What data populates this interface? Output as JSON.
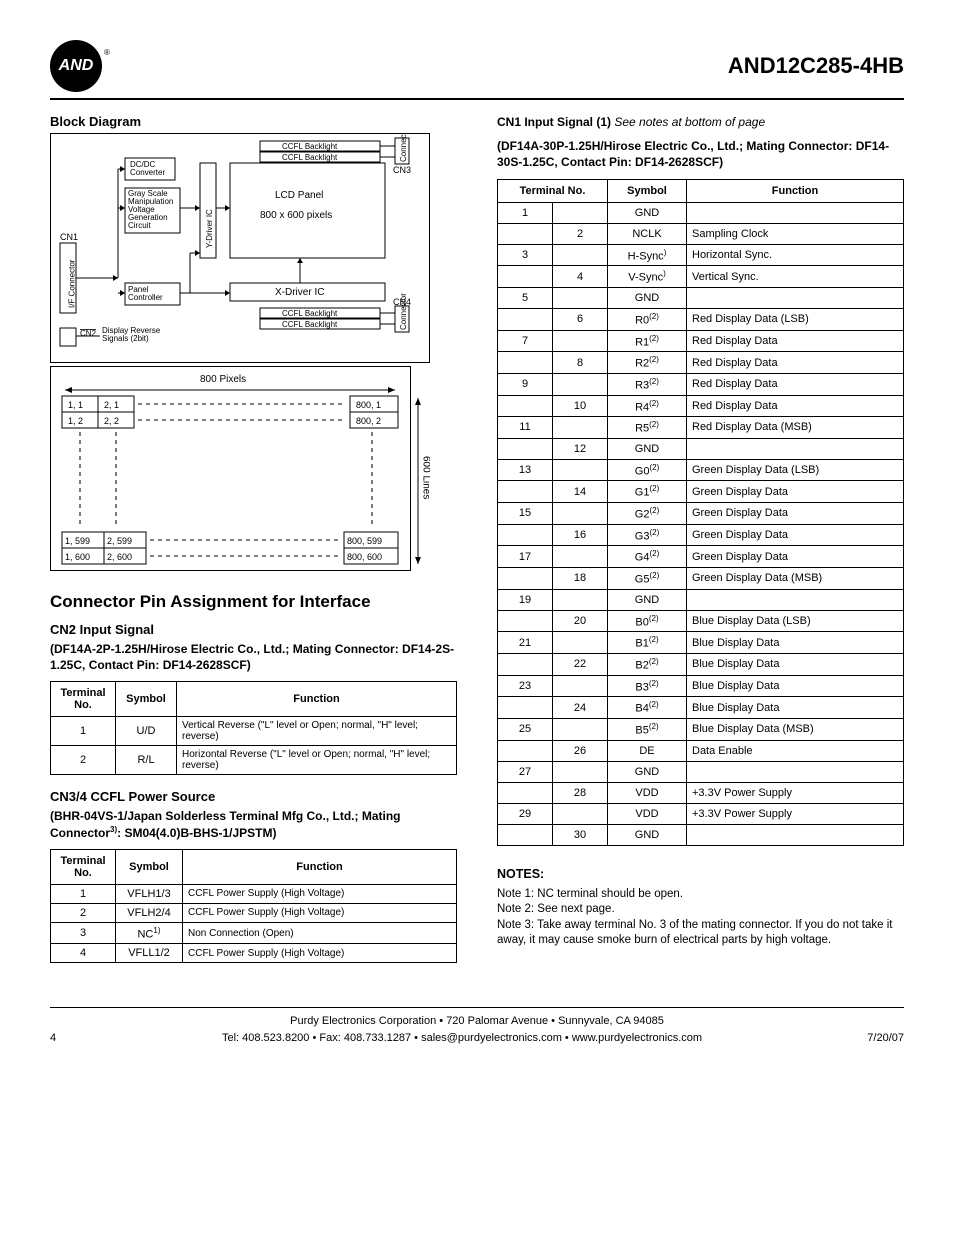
{
  "header": {
    "logo_text": "AND",
    "part_number": "AND12C285-4HB"
  },
  "left": {
    "block_diagram_title": "Block Diagram",
    "block": {
      "cn1": "CN1",
      "cn2": "CN2",
      "cn3": "CN3",
      "cn4": "CN4",
      "if_connector": "I/F Connector",
      "connector": "Connector",
      "dcdc": "DC/DC\nConverter",
      "gray": "Gray Scale\nManipulation\nVoltage\nGeneration\nCircuit",
      "panel_ctrl": "Panel\nController",
      "y_driver": "Y-Driver IC",
      "x_driver": "X-Driver IC",
      "lcd_panel": "LCD Panel",
      "lcd_pixels": "800 x 600 pixels",
      "ccfl": "CCFL Backlight",
      "disp_rev": "Display Reverse\nSignals (2bit)"
    },
    "pixel_grid": {
      "top_label": "800 Pixels",
      "right_label": "600 Lines",
      "cells": {
        "r1c1": "1, 1",
        "r1c2": "2, 1",
        "r1cN": "800, 1",
        "r2c1": "1, 2",
        "r2c2": "2, 2",
        "r2cN": "800, 2",
        "rM1c1": "1, 599",
        "rM1c2": "2, 599",
        "rM1cN": "800, 599",
        "rMc1": "1, 600",
        "rMc2": "2, 600",
        "rMcN": "800, 600"
      }
    },
    "connector_heading": "Connector Pin Assignment for Interface",
    "cn2_title": "CN2 Input Signal",
    "cn2_sub": "(DF14A-2P-1.25H/Hirose Electric Co., Ltd.; Mating Connector: DF14-2S-1.25C, Contact Pin: DF14-2628SCF)",
    "cn2_headers": [
      "Terminal No.",
      "Symbol",
      "Function"
    ],
    "cn2_rows": [
      {
        "no": "1",
        "sym": "U/D",
        "fn": "Vertical Reverse (\"L\" level or Open; normal, \"H\" level; reverse)"
      },
      {
        "no": "2",
        "sym": "R/L",
        "fn": "Horizontal Reverse (\"L\" level or Open; normal, \"H\" level; reverse)"
      }
    ],
    "cn34_title": "CN3/4 CCFL Power Source",
    "cn34_sub_a": "(BHR-04VS-1/Japan Solderless Terminal Mfg Co., Ltd.; Mating Connector",
    "cn34_sub_sup": "3)",
    "cn34_sub_b": ": SM04(4.0)B-BHS-1/JPSTM)",
    "cn34_headers": [
      "Terminal No.",
      "Symbol",
      "Function"
    ],
    "cn34_rows": [
      {
        "no": "1",
        "sym": "VFLH1/3",
        "fn": "CCFL Power Supply (High Voltage)"
      },
      {
        "no": "2",
        "sym": "VFLH2/4",
        "fn": "CCFL Power Supply (High Voltage)"
      },
      {
        "no": "3",
        "sym": "NC",
        "sup": "1)",
        "fn": "Non Connection (Open)"
      },
      {
        "no": "4",
        "sym": "VFLL1/2",
        "fn": "CCFL Power Supply (High Voltage)"
      }
    ]
  },
  "right": {
    "cn1_title_a": "CN1 Input Signal (1) ",
    "cn1_title_em": "See notes at bottom of page",
    "cn1_sub": "(DF14A-30P-1.25H/Hirose Electric Co., Ltd.; Mating Connector: DF14-30S-1.25C, Contact Pin: DF14-2628SCF)",
    "cn1_headers": [
      "Terminal No.",
      "Symbol",
      "Function"
    ],
    "cn1_rows": [
      {
        "col": 0,
        "no": "1",
        "sym": "GND",
        "fn": ""
      },
      {
        "col": 1,
        "no": "2",
        "sym": "NCLK",
        "fn": "Sampling Clock"
      },
      {
        "col": 0,
        "no": "3",
        "sym": "H-Sync",
        "sup": ")",
        "fn": "Horizontal Sync."
      },
      {
        "col": 1,
        "no": "4",
        "sym": "V-Sync",
        "sup": ")",
        "fn": "Vertical Sync."
      },
      {
        "col": 0,
        "no": "5",
        "sym": "GND",
        "fn": ""
      },
      {
        "col": 1,
        "no": "6",
        "sym": "R0",
        "sup": "(2)",
        "fn": "Red Display Data (LSB)"
      },
      {
        "col": 0,
        "no": "7",
        "sym": "R1",
        "sup": "(2)",
        "fn": "Red Display Data"
      },
      {
        "col": 1,
        "no": "8",
        "sym": "R2",
        "sup": "(2)",
        "fn": "Red Display Data"
      },
      {
        "col": 0,
        "no": "9",
        "sym": "R3",
        "sup": "(2)",
        "fn": "Red Display Data"
      },
      {
        "col": 1,
        "no": "10",
        "sym": "R4",
        "sup": "(2)",
        "fn": "Red Display Data"
      },
      {
        "col": 0,
        "no": "11",
        "sym": "R5",
        "sup": "(2)",
        "fn": "Red Display Data (MSB)"
      },
      {
        "col": 1,
        "no": "12",
        "sym": "GND",
        "fn": ""
      },
      {
        "col": 0,
        "no": "13",
        "sym": "G0",
        "sup": "(2)",
        "fn": "Green Display Data (LSB)"
      },
      {
        "col": 1,
        "no": "14",
        "sym": "G1",
        "sup": "(2)",
        "fn": "Green Display Data"
      },
      {
        "col": 0,
        "no": "15",
        "sym": "G2",
        "sup": "(2)",
        "fn": "Green Display Data"
      },
      {
        "col": 1,
        "no": "16",
        "sym": "G3",
        "sup": "(2)",
        "fn": "Green Display Data"
      },
      {
        "col": 0,
        "no": "17",
        "sym": "G4",
        "sup": "(2)",
        "fn": "Green Display Data"
      },
      {
        "col": 1,
        "no": "18",
        "sym": "G5",
        "sup": "(2)",
        "fn": "Green Display Data (MSB)"
      },
      {
        "col": 0,
        "no": "19",
        "sym": "GND",
        "fn": ""
      },
      {
        "col": 1,
        "no": "20",
        "sym": "B0",
        "sup": "(2)",
        "fn": "Blue Display Data (LSB)"
      },
      {
        "col": 0,
        "no": "21",
        "sym": "B1",
        "sup": "(2)",
        "fn": "Blue Display Data"
      },
      {
        "col": 1,
        "no": "22",
        "sym": "B2",
        "sup": "(2)",
        "fn": "Blue Display Data"
      },
      {
        "col": 0,
        "no": "23",
        "sym": "B3",
        "sup": "(2)",
        "fn": "Blue Display Data"
      },
      {
        "col": 1,
        "no": "24",
        "sym": "B4",
        "sup": "(2)",
        "fn": "Blue Display Data"
      },
      {
        "col": 0,
        "no": "25",
        "sym": "B5",
        "sup": "(2)",
        "fn": "Blue Display Data (MSB)"
      },
      {
        "col": 1,
        "no": "26",
        "sym": "DE",
        "fn": "Data Enable"
      },
      {
        "col": 0,
        "no": "27",
        "sym": "GND",
        "fn": ""
      },
      {
        "col": 1,
        "no": "28",
        "sym": "VDD",
        "fn": "+3.3V Power Supply"
      },
      {
        "col": 0,
        "no": "29",
        "sym": "VDD",
        "fn": "+3.3V Power Supply"
      },
      {
        "col": 1,
        "no": "30",
        "sym": "GND",
        "fn": ""
      }
    ],
    "notes_h": "NOTES:",
    "note1": "Note 1: NC terminal should be open.",
    "note2": "Note 2: See next page.",
    "note3": "Note 3: Take away terminal No. 3 of the mating connector. If you do not take it away, it may cause smoke burn of electrical parts by high voltage."
  },
  "footer": {
    "line1": "Purdy Electronics Corporation  •  720 Palomar Avenue  •  Sunnyvale, CA 94085",
    "line2": "Tel: 408.523.8200  •  Fax: 408.733.1287  •  sales@purdyelectronics.com  •  www.purdyelectronics.com",
    "page": "4",
    "date": "7/20/07"
  },
  "style": {
    "rule_color": "#000000",
    "bg": "#ffffff",
    "text": "#000000"
  }
}
